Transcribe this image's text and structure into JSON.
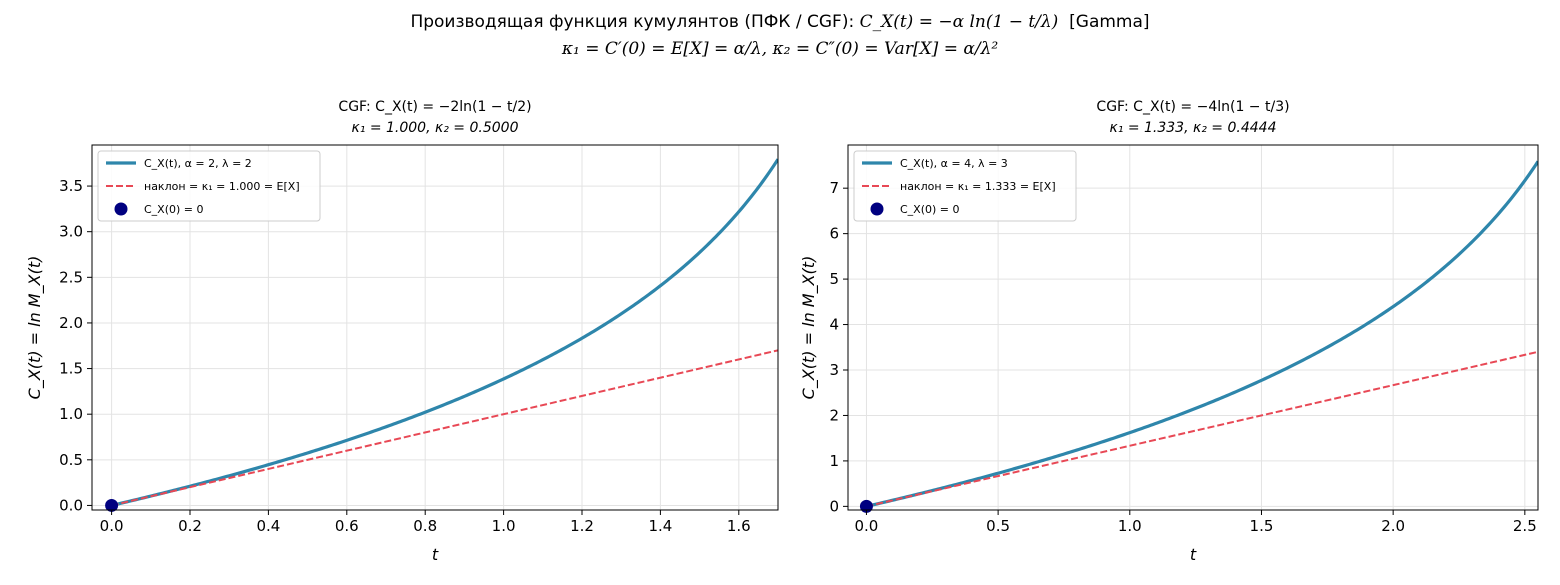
{
  "figure": {
    "suptitle_line1_prefix": "Производящая функция кумулянтов (ПФК / CGF): ",
    "suptitle_line1_math": "C_X(t) = −α ln(1 − t/λ)",
    "suptitle_line1_suffix": "[Gamma]",
    "suptitle_line2_math": "κ₁ = C′(0) = E[X] = α/λ,  κ₂ = C″(0) = Var[X] = α/λ²"
  },
  "chart_data": [
    {
      "type": "line",
      "title": "CGF: C_X(t) = −2ln(1 − t/2)",
      "subtitle": "κ₁ = 1.000,  κ₂ = 0.5000",
      "xlabel": "t",
      "ylabel": "C_X(t) = ln M_X(t)",
      "alpha": 2,
      "lambda": 2,
      "xlim": [
        -0.05,
        1.7
      ],
      "ylim": [
        -0.05,
        3.95
      ],
      "xticks": [
        "0.0",
        "0.2",
        "0.4",
        "0.6",
        "0.8",
        "1.0",
        "1.2",
        "1.4",
        "1.6"
      ],
      "xtick_values": [
        0,
        0.2,
        0.4,
        0.6,
        0.8,
        1.0,
        1.2,
        1.4,
        1.6
      ],
      "yticks": [
        "0.0",
        "0.5",
        "1.0",
        "1.5",
        "2.0",
        "2.5",
        "3.0",
        "3.5"
      ],
      "ytick_values": [
        0,
        0.5,
        1.0,
        1.5,
        2.0,
        2.5,
        3.0,
        3.5
      ],
      "grid": true,
      "legend_position": "top-left",
      "series": [
        {
          "name": "C_X(t), α = 2, λ = 2",
          "kind": "curve",
          "color": "#2e86ab",
          "x": [
            0,
            0.2,
            0.4,
            0.6,
            0.8,
            1.0,
            1.2,
            1.4,
            1.6,
            1.7
          ],
          "y": [
            0,
            0.211,
            0.446,
            0.713,
            1.022,
            1.386,
            1.833,
            2.408,
            3.219,
            3.794
          ]
        },
        {
          "name": "наклон = κ₁ = 1.000 = E[X]",
          "kind": "dashed",
          "color": "#e84855",
          "x": [
            0,
            1.7
          ],
          "y": [
            0,
            1.7
          ]
        },
        {
          "name": "C_X(0) = 0",
          "kind": "point",
          "color": "#000080",
          "x": [
            0
          ],
          "y": [
            0
          ]
        }
      ]
    },
    {
      "type": "line",
      "title": "CGF: C_X(t) = −4ln(1 − t/3)",
      "subtitle": "κ₁ = 1.333,  κ₂ = 0.4444",
      "xlabel": "t",
      "ylabel": "C_X(t) = ln M_X(t)",
      "alpha": 4,
      "lambda": 3,
      "xlim": [
        -0.07,
        2.55
      ],
      "ylim": [
        -0.08,
        7.95
      ],
      "xticks": [
        "0.0",
        "0.5",
        "1.0",
        "1.5",
        "2.0",
        "2.5"
      ],
      "xtick_values": [
        0,
        0.5,
        1.0,
        1.5,
        2.0,
        2.5
      ],
      "yticks": [
        "0",
        "1",
        "2",
        "3",
        "4",
        "5",
        "6",
        "7"
      ],
      "ytick_values": [
        0,
        1,
        2,
        3,
        4,
        5,
        6,
        7
      ],
      "grid": true,
      "legend_position": "top-left",
      "series": [
        {
          "name": "C_X(t), α = 4, λ = 3",
          "kind": "curve",
          "color": "#2e86ab",
          "x": [
            0,
            0.5,
            1.0,
            1.5,
            2.0,
            2.5,
            2.55
          ],
          "y": [
            0,
            0.729,
            1.622,
            2.773,
            4.394,
            7.167,
            7.589
          ]
        },
        {
          "name": "наклон = κ₁ = 1.333 = E[X]",
          "kind": "dashed",
          "color": "#e84855",
          "x": [
            0,
            2.55
          ],
          "y": [
            0,
            3.4
          ]
        },
        {
          "name": "C_X(0) = 0",
          "kind": "point",
          "color": "#000080",
          "x": [
            0
          ],
          "y": [
            0
          ]
        }
      ]
    }
  ]
}
